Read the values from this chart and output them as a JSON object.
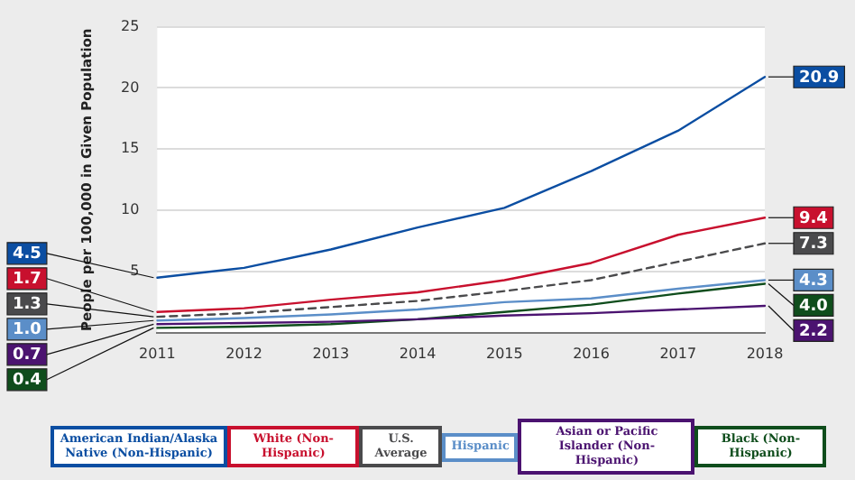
{
  "chart_data": {
    "type": "line",
    "ylabel": "People per 100,000 in Given Population",
    "categories": [
      "2011",
      "2012",
      "2013",
      "2014",
      "2015",
      "2016",
      "2017",
      "2018"
    ],
    "ylim": [
      0,
      25
    ],
    "yticks": [
      5,
      10,
      15,
      20,
      25
    ],
    "grid": "y",
    "legend": "bottom",
    "marker": "none",
    "series": [
      {
        "name": "American Indian/Alaska Native (Non-Hispanic)",
        "color": "#0b4ea2",
        "values": [
          4.5,
          5.3,
          6.8,
          8.6,
          10.2,
          13.2,
          16.5,
          20.9
        ],
        "value_labels": [
          "4.5",
          null,
          null,
          null,
          null,
          null,
          null,
          "20.9"
        ]
      },
      {
        "name": "White (Non-Hispanic)",
        "color": "#c8102e",
        "values": [
          1.7,
          2.0,
          2.7,
          3.3,
          4.3,
          5.7,
          8.0,
          9.4
        ],
        "value_labels": [
          "1.7",
          null,
          null,
          null,
          null,
          null,
          null,
          "9.4"
        ]
      },
      {
        "name": "U.S. Average",
        "color": "#4a4a4c",
        "line_style": "dashed",
        "values": [
          1.3,
          1.6,
          2.1,
          2.6,
          3.4,
          4.3,
          5.8,
          7.3
        ],
        "value_labels": [
          "1.3",
          null,
          null,
          null,
          null,
          null,
          null,
          "7.3"
        ]
      },
      {
        "name": "Hispanic",
        "color": "#5b8ec8",
        "values": [
          1.0,
          1.2,
          1.5,
          1.9,
          2.5,
          2.8,
          3.6,
          4.3
        ],
        "value_labels": [
          "1.0",
          null,
          null,
          null,
          null,
          null,
          null,
          "4.3"
        ]
      },
      {
        "name": "Asian or Pacific Islander (Non-Hispanic)",
        "color": "#4b1370",
        "values": [
          0.7,
          0.8,
          0.9,
          1.1,
          1.4,
          1.6,
          1.9,
          2.2
        ],
        "value_labels": [
          "0.7",
          null,
          null,
          null,
          null,
          null,
          null,
          "2.2"
        ]
      },
      {
        "name": "Black (Non-Hispanic)",
        "color": "#0f4d1c",
        "values": [
          0.4,
          0.5,
          0.7,
          1.1,
          1.7,
          2.3,
          3.2,
          4.0
        ],
        "value_labels": [
          "0.4",
          null,
          null,
          null,
          null,
          null,
          null,
          "4.0"
        ]
      }
    ]
  }
}
